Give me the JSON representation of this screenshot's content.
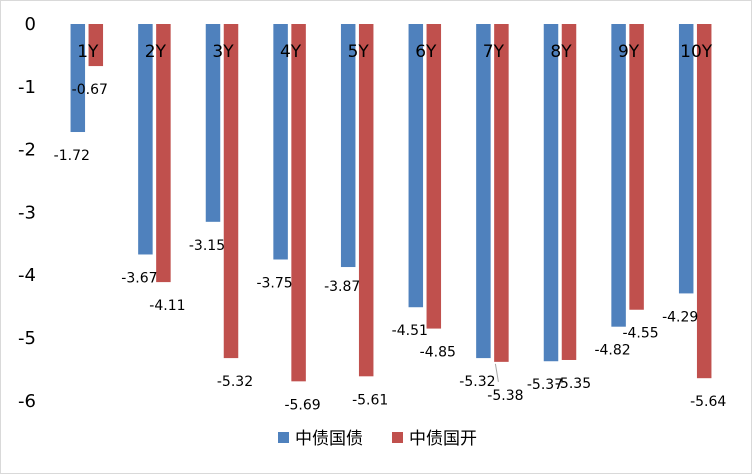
{
  "chart_data": {
    "type": "bar",
    "title": "",
    "xlabel": "",
    "ylabel": "",
    "ylim": [
      -6,
      0
    ],
    "yticks": [
      0,
      -1,
      -2,
      -3,
      -4,
      -5,
      -6
    ],
    "grid": false,
    "legend_position": "bottom",
    "categories": [
      "1Y",
      "2Y",
      "3Y",
      "4Y",
      "5Y",
      "6Y",
      "7Y",
      "8Y",
      "9Y",
      "10Y"
    ],
    "series": [
      {
        "name": "中债国债",
        "color": "#4f81bd",
        "values": [
          -1.72,
          -3.67,
          -3.15,
          -3.75,
          -3.87,
          -4.51,
          -5.32,
          -5.37,
          -4.82,
          -4.29
        ]
      },
      {
        "name": "中债国开",
        "color": "#c0504d",
        "values": [
          -0.67,
          -4.11,
          -5.32,
          -5.69,
          -5.61,
          -4.85,
          -5.38,
          -5.35,
          -4.55,
          -5.64
        ]
      }
    ],
    "data_labels": [
      [
        "-1.72",
        "-3.67",
        "-3.15",
        "-3.75",
        "-3.87",
        "-4.51",
        "-5.32",
        "-5.37",
        "-4.82",
        "-4.29"
      ],
      [
        "-0.67",
        "-4.11",
        "-5.32",
        "-5.69",
        "-5.61",
        "-4.85",
        "-5.38",
        "-5.35",
        "-4.55",
        "-5.64"
      ]
    ]
  }
}
